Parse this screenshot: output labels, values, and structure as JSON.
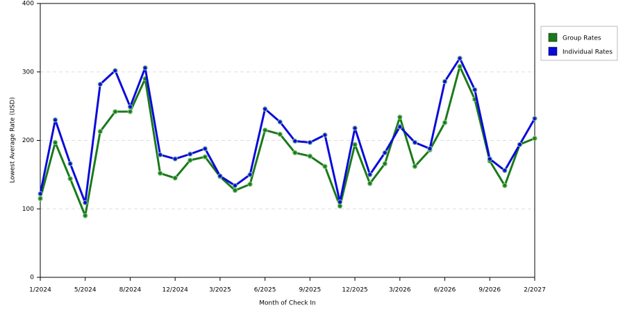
{
  "chart_data": {
    "type": "line",
    "x_label": "Month of Check In",
    "y_label": "Lowest Average Rate (USD)",
    "categories": [
      "1/2024",
      null,
      null,
      "5/2024",
      null,
      null,
      "8/2024",
      null,
      null,
      "12/2024",
      null,
      null,
      "3/2025",
      null,
      null,
      "6/2025",
      null,
      null,
      "9/2025",
      null,
      null,
      "12/2025",
      null,
      null,
      "3/2026",
      null,
      null,
      "6/2026",
      null,
      null,
      "9/2026",
      null,
      null,
      "2/2027"
    ],
    "series": [
      {
        "name": "Group Rates",
        "color": "#1a7a1a",
        "values": [
          115,
          197,
          144,
          90,
          213,
          242,
          242,
          290,
          152,
          145,
          171,
          176,
          147,
          127,
          136,
          215,
          209,
          182,
          177,
          162,
          104,
          194,
          137,
          166,
          234,
          162,
          186,
          226,
          308,
          260,
          170,
          134,
          194,
          203
        ]
      },
      {
        "name": "Individual Rates",
        "color": "#0a0adc",
        "values": [
          122,
          230,
          166,
          109,
          282,
          302,
          249,
          306,
          179,
          173,
          180,
          188,
          148,
          134,
          150,
          246,
          227,
          199,
          197,
          208,
          110,
          218,
          150,
          182,
          220,
          197,
          188,
          286,
          320,
          274,
          173,
          156,
          194,
          232
        ]
      }
    ],
    "ylim": [
      0,
      400
    ],
    "yticks": [
      0,
      100,
      200,
      300,
      400
    ],
    "grid": true,
    "legend": "right"
  }
}
